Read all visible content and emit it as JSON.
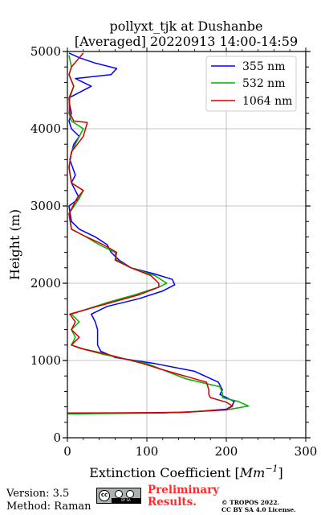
{
  "chart_data": {
    "type": "line",
    "title": [
      "pollyxt_tjk at Dushanbe",
      "[Averaged] 20220913 14:00-14:59"
    ],
    "xlabel": "Extinction Coefficient [",
    "xlabel_unit": "Mm",
    "xlabel_exp": "−1",
    "xlabel_close": "]",
    "ylabel": "Height (m)",
    "xlim": [
      0,
      300
    ],
    "ylim": [
      0,
      5000
    ],
    "xticks": [
      0,
      100,
      200,
      300
    ],
    "yticks": [
      0,
      1000,
      2000,
      3000,
      4000,
      5000
    ],
    "grid": true,
    "legend_position": "top-right",
    "series": [
      {
        "name": "355 nm",
        "color": "#0000ff",
        "points": [
          [
            0,
            310
          ],
          [
            150,
            330
          ],
          [
            200,
            370
          ],
          [
            207,
            410
          ],
          [
            210,
            470
          ],
          [
            200,
            520
          ],
          [
            192,
            560
          ],
          [
            195,
            620
          ],
          [
            190,
            720
          ],
          [
            160,
            860
          ],
          [
            110,
            960
          ],
          [
            60,
            1040
          ],
          [
            42,
            1120
          ],
          [
            38,
            1200
          ],
          [
            38,
            1300
          ],
          [
            38,
            1400
          ],
          [
            35,
            1500
          ],
          [
            30,
            1600
          ],
          [
            50,
            1700
          ],
          [
            90,
            1800
          ],
          [
            120,
            1900
          ],
          [
            135,
            1980
          ],
          [
            132,
            2050
          ],
          [
            110,
            2120
          ],
          [
            80,
            2200
          ],
          [
            65,
            2300
          ],
          [
            55,
            2400
          ],
          [
            50,
            2500
          ],
          [
            35,
            2600
          ],
          [
            15,
            2700
          ],
          [
            5,
            2800
          ],
          [
            2,
            3000
          ],
          [
            15,
            3100
          ],
          [
            5,
            3300
          ],
          [
            10,
            3400
          ],
          [
            3,
            3600
          ],
          [
            8,
            3800
          ],
          [
            15,
            3900
          ],
          [
            5,
            4000
          ],
          [
            2,
            4100
          ],
          [
            5,
            4200
          ],
          [
            3,
            4300
          ],
          [
            2,
            4400
          ],
          [
            30,
            4550
          ],
          [
            10,
            4650
          ],
          [
            55,
            4700
          ],
          [
            62,
            4780
          ],
          [
            35,
            4850
          ],
          [
            15,
            4920
          ],
          [
            2,
            4980
          ]
        ]
      },
      {
        "name": "532 nm",
        "color": "#00b000",
        "points": [
          [
            0,
            310
          ],
          [
            120,
            320
          ],
          [
            200,
            360
          ],
          [
            228,
            410
          ],
          [
            215,
            470
          ],
          [
            195,
            520
          ],
          [
            195,
            580
          ],
          [
            192,
            660
          ],
          [
            150,
            760
          ],
          [
            100,
            960
          ],
          [
            45,
            1080
          ],
          [
            15,
            1160
          ],
          [
            5,
            1200
          ],
          [
            10,
            1300
          ],
          [
            5,
            1400
          ],
          [
            15,
            1500
          ],
          [
            5,
            1600
          ],
          [
            20,
            1650
          ],
          [
            50,
            1750
          ],
          [
            85,
            1850
          ],
          [
            115,
            1950
          ],
          [
            125,
            2000
          ],
          [
            110,
            2100
          ],
          [
            80,
            2200
          ],
          [
            62,
            2300
          ],
          [
            60,
            2400
          ],
          [
            40,
            2500
          ],
          [
            20,
            2620
          ],
          [
            5,
            2700
          ],
          [
            2,
            2900
          ],
          [
            15,
            3100
          ],
          [
            20,
            3200
          ],
          [
            5,
            3300
          ],
          [
            2,
            3500
          ],
          [
            5,
            3700
          ],
          [
            15,
            3900
          ],
          [
            20,
            4000
          ],
          [
            5,
            4100
          ],
          [
            2,
            4200
          ],
          [
            3,
            4400
          ],
          [
            8,
            4550
          ],
          [
            2,
            4700
          ],
          [
            5,
            4800
          ],
          [
            2,
            4950
          ]
        ]
      },
      {
        "name": "1064 nm",
        "color": "#d40000",
        "points": [
          [
            0,
            320
          ],
          [
            140,
            325
          ],
          [
            200,
            360
          ],
          [
            208,
            410
          ],
          [
            200,
            460
          ],
          [
            180,
            520
          ],
          [
            178,
            560
          ],
          [
            178,
            620
          ],
          [
            175,
            720
          ],
          [
            120,
            880
          ],
          [
            95,
            960
          ],
          [
            50,
            1080
          ],
          [
            20,
            1150
          ],
          [
            5,
            1200
          ],
          [
            15,
            1300
          ],
          [
            5,
            1400
          ],
          [
            10,
            1500
          ],
          [
            3,
            1600
          ],
          [
            20,
            1650
          ],
          [
            55,
            1750
          ],
          [
            90,
            1850
          ],
          [
            115,
            1950
          ],
          [
            115,
            2000
          ],
          [
            105,
            2100
          ],
          [
            80,
            2200
          ],
          [
            60,
            2300
          ],
          [
            62,
            2400
          ],
          [
            45,
            2500
          ],
          [
            20,
            2620
          ],
          [
            5,
            2700
          ],
          [
            2,
            2900
          ],
          [
            12,
            3100
          ],
          [
            20,
            3200
          ],
          [
            5,
            3300
          ],
          [
            2,
            3500
          ],
          [
            5,
            3700
          ],
          [
            20,
            3900
          ],
          [
            25,
            4080
          ],
          [
            8,
            4100
          ],
          [
            3,
            4200
          ],
          [
            2,
            4400
          ],
          [
            8,
            4550
          ],
          [
            2,
            4700
          ],
          [
            5,
            4800
          ],
          [
            20,
            4980
          ]
        ]
      }
    ]
  },
  "footer": {
    "version": "Version: 3.5",
    "method": "Method: Raman",
    "preliminary_line1": "Preliminary",
    "preliminary_line2": "Results.",
    "copyright_line1": "© TROPOS 2022.",
    "copyright_line2": "CC BY SA 4.0 License.",
    "license_badge": {
      "cc": "cc",
      "strip": "BY SA"
    }
  }
}
